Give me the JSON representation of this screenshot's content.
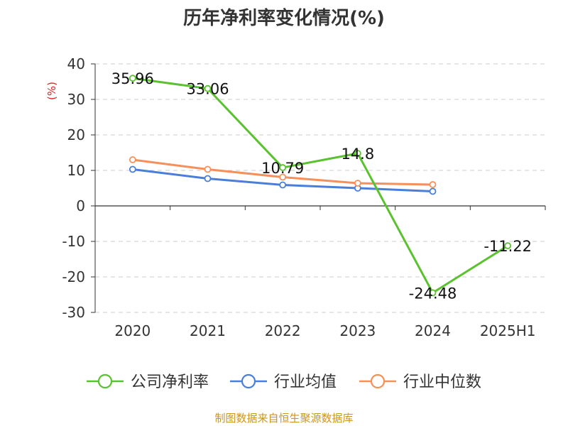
{
  "chart_data": {
    "type": "line",
    "title": "历年净利率变化情况(%)",
    "ylabel": "(%)",
    "categories": [
      "2020",
      "2021",
      "2022",
      "2023",
      "2024",
      "2025H1"
    ],
    "ylim": [
      -30,
      40
    ],
    "yticks": [
      40,
      30,
      20,
      10,
      0,
      -10,
      -20,
      -30
    ],
    "grid": true,
    "legend_position": "bottom",
    "series": [
      {
        "name": "公司净利率",
        "color": "#5ac12f",
        "values": [
          35.96,
          33.06,
          10.79,
          14.8,
          -24.48,
          -11.22
        ],
        "labels": [
          "35.96",
          "33.06",
          "10.79",
          "14.8",
          "-24.48",
          "-11.22"
        ]
      },
      {
        "name": "行业均值",
        "color": "#4a7ed8",
        "values": [
          10.3,
          7.7,
          5.9,
          5.0,
          4.1,
          null
        ]
      },
      {
        "name": "行业中位数",
        "color": "#f5905a",
        "values": [
          13.0,
          10.3,
          8.1,
          6.4,
          6.0,
          null
        ]
      }
    ]
  },
  "footer": "制图数据来自恒生聚源数据库"
}
